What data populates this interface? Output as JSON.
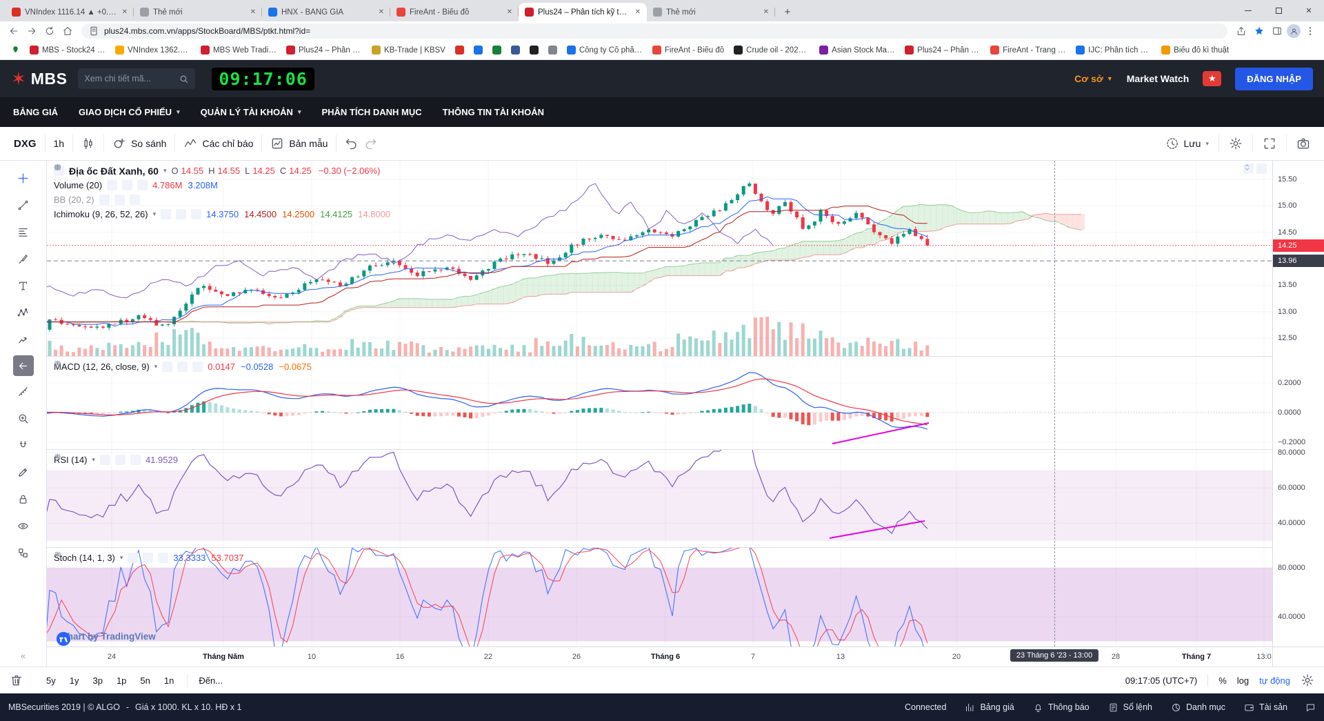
{
  "colors": {
    "accent_blue": "#2962ff",
    "up": "#089981",
    "down": "#f23645",
    "orange": "#f7941d",
    "price_badge": "#f23645",
    "crosshair_badge": "#3a3e4a"
  },
  "browser": {
    "tabs": [
      {
        "label": "VNIndex 1116.14 ▲ +0.08%",
        "color": "#d93025",
        "active": false
      },
      {
        "label": "Thẻ mới",
        "color": "#9aa0a6",
        "active": false
      },
      {
        "label": "HNX - BANG GIA",
        "color": "#1a73e8",
        "active": false
      },
      {
        "label": "FireAnt - Biểu đồ",
        "color": "#e8453c",
        "active": false
      },
      {
        "label": "Plus24 – Phân tích kỹ thuật",
        "color": "#d01f2e",
        "active": true
      },
      {
        "label": "Thẻ mới",
        "color": "#9aa0a6",
        "active": false
      }
    ],
    "url": "plus24.mbs.com.vn/apps/StockBoard/MBS/ptkt.html?id=",
    "bookmarks": [
      {
        "label": "",
        "color": "#188038",
        "icon": "pin"
      },
      {
        "label": "MBS - Stock24 Giao...",
        "color": "#d01f2e"
      },
      {
        "label": "VNIndex 1362.82 ▲...",
        "color": "#f9ab00"
      },
      {
        "label": "MBS Web Trading -...",
        "color": "#d01f2e"
      },
      {
        "label": "Plus24 – Phân tích...",
        "color": "#d01f2e"
      },
      {
        "label": "KB-Trade | KBSV",
        "color": "#c9a227"
      },
      {
        "label": "",
        "color": "#d93025"
      },
      {
        "label": "",
        "color": "#1a73e8"
      },
      {
        "label": "",
        "color": "#188038"
      },
      {
        "label": "",
        "color": "#3b5998"
      },
      {
        "label": "",
        "color": "#202124"
      },
      {
        "label": "",
        "color": "#80868b"
      },
      {
        "label": "Công ty Cổ phần C...",
        "color": "#1a73e8"
      },
      {
        "label": "FireAnt - Biểu đồ",
        "color": "#e8453c"
      },
      {
        "label": "Crude oil - 2022 Da...",
        "color": "#202124"
      },
      {
        "label": "Asian Stock Market...",
        "color": "#7b1fa2"
      },
      {
        "label": "Plus24 – Phân tích...",
        "color": "#d01f2e"
      },
      {
        "label": "FireAnt - Trang chủ",
        "color": "#e8453c"
      },
      {
        "label": "IJC: Phân tích kỹ th...",
        "color": "#1a73e8"
      },
      {
        "label": "Biểu đồ kì thuật",
        "color": "#f29900"
      }
    ]
  },
  "header": {
    "logo": "MBS",
    "search_placeholder": "Xem chi tiết mã...",
    "clock": "09:17:06",
    "market_type": "Cơ sở",
    "market_watch": "Market Watch",
    "login": "ĐĂNG NHẬP"
  },
  "nav": {
    "items": [
      {
        "label": "BẢNG GIÁ",
        "caret": false
      },
      {
        "label": "GIAO DỊCH CỔ PHIẾU",
        "caret": true
      },
      {
        "label": "QUẢN LÝ TÀI KHOẢN",
        "caret": true
      },
      {
        "label": "PHÂN TÍCH DANH MỤC",
        "caret": false
      },
      {
        "label": "THÔNG TIN TÀI KHOẢN",
        "caret": false
      }
    ]
  },
  "chart_toolbar": {
    "symbol": "DXG",
    "interval": "1h",
    "compare": "So sánh",
    "indicators": "Các chỉ báo",
    "template": "Bản mẫu",
    "save": "Lưu"
  },
  "drawing_toolbar": {
    "items": [
      "crosshair",
      "trend-line",
      "fib-retracement",
      "brush",
      "text",
      "xabcd-pattern",
      "prediction",
      "back-arrow",
      "measure",
      "zoom-in",
      "magnet",
      "edit",
      "lock",
      "eye",
      "object-tree"
    ]
  },
  "legend": {
    "main": {
      "title": "Địa ốc Đất Xanh, 60",
      "o_label": "O",
      "o": "14.55",
      "h_label": "H",
      "h": "14.55",
      "l_label": "L",
      "l": "14.25",
      "c_label": "C",
      "c": "14.25",
      "change": "−0.30 (−2.06%)"
    },
    "volume": {
      "title": "Volume (20)",
      "values": [
        "4.786M",
        "3.208M"
      ],
      "value_colors": [
        "#f23645",
        "#2962ff"
      ]
    },
    "bb": {
      "title": "BB (20, 2)"
    },
    "ichimoku": {
      "title": "Ichimoku (9, 26, 52, 26)",
      "values": [
        "14.3750",
        "14.4500",
        "14.2500",
        "14.4125",
        "14.8000"
      ],
      "value_colors": [
        "#2962ff",
        "#b71c1c",
        "#e65100",
        "#43a047",
        "#ef9a9a"
      ]
    },
    "macd": {
      "title": "MACD (12, 26, close, 9)",
      "values": [
        "0.0147",
        "−0.0528",
        "−0.0675"
      ],
      "value_colors": [
        "#f23645",
        "#2962ff",
        "#ff6d00"
      ]
    },
    "rsi": {
      "title": "RSI (14)",
      "values": [
        "41.9529"
      ],
      "value_colors": [
        "#7e57c2"
      ]
    },
    "stoch": {
      "title": "Stoch (14, 1, 3)",
      "values": [
        "33.3333",
        "53.7037"
      ],
      "value_colors": [
        "#2962ff",
        "#f23645"
      ]
    }
  },
  "axes": {
    "main_labels": [
      {
        "text": "15.50",
        "value": 15.5
      },
      {
        "text": "15.00",
        "value": 15.0
      },
      {
        "text": "14.50",
        "value": 14.5
      },
      {
        "text": "13.50",
        "value": 13.5
      },
      {
        "text": "13.00",
        "value": 13.0
      },
      {
        "text": "12.50",
        "value": 12.5
      }
    ],
    "main_badges": [
      {
        "text": "14.25",
        "value": 14.25,
        "color": "#f23645"
      },
      {
        "text": "13.96",
        "value": 13.96,
        "color": "#3a3e4a"
      }
    ],
    "macd_labels": [
      {
        "text": "0.2000",
        "value": 0.2
      },
      {
        "text": "0.0000",
        "value": 0.0
      },
      {
        "text": "−0.2000",
        "value": -0.2
      }
    ],
    "rsi_labels": [
      {
        "text": "80.0000",
        "value": 80
      },
      {
        "text": "60.0000",
        "value": 60
      },
      {
        "text": "40.0000",
        "value": 40
      }
    ],
    "stoch_labels": [
      {
        "text": "80.0000",
        "value": 80
      },
      {
        "text": "40.0000",
        "value": 40
      }
    ]
  },
  "time_axis": {
    "labels": [
      {
        "text": "24",
        "pos": 0.053
      },
      {
        "text": "Tháng Năm",
        "pos": 0.144,
        "major": true
      },
      {
        "text": "10",
        "pos": 0.216
      },
      {
        "text": "16",
        "pos": 0.288
      },
      {
        "text": "22",
        "pos": 0.36
      },
      {
        "text": "26",
        "pos": 0.432
      },
      {
        "text": "Tháng 6",
        "pos": 0.505,
        "major": true
      },
      {
        "text": "7",
        "pos": 0.576
      },
      {
        "text": "13",
        "pos": 0.648
      },
      {
        "text": "20",
        "pos": 0.742
      },
      {
        "text": "28",
        "pos": 0.872
      },
      {
        "text": "Tháng 7",
        "pos": 0.938,
        "major": true
      },
      {
        "text": "13:0",
        "pos": 0.993
      }
    ],
    "crosshair_label": "23 Tháng 6 '23 - 13:00",
    "crosshair_pos": 0.822
  },
  "bottom_bar": {
    "ranges": [
      "5y",
      "1y",
      "3p",
      "1p",
      "5n",
      "1n"
    ],
    "goto": "Đến...",
    "time": "09:17:05 (UTC+7)",
    "percent": "%",
    "log": "log",
    "auto": "tự động"
  },
  "status_bar": {
    "left": "MBSecurities 2019 | © ALGO",
    "sep": "-",
    "note": "Giá x 1000. KL x 10. HĐ x 1",
    "items": [
      {
        "label": "Connected",
        "icon": ""
      },
      {
        "label": "Bảng giá",
        "icon": "chart-bars"
      },
      {
        "label": "Thông báo",
        "icon": "bell"
      },
      {
        "label": "Sổ lệnh",
        "icon": "order-list"
      },
      {
        "label": "Danh mục",
        "icon": "pie"
      },
      {
        "label": "Tài sản",
        "icon": "wallet"
      }
    ]
  },
  "watermark": "Chart by TradingView"
}
